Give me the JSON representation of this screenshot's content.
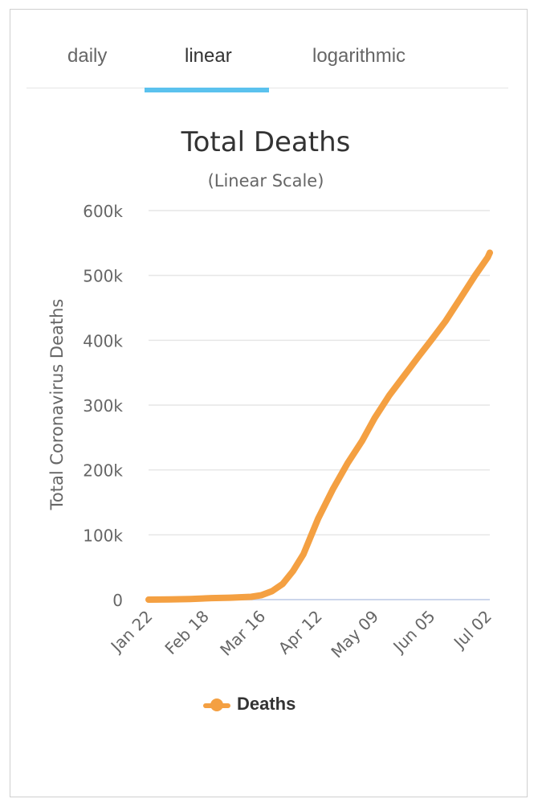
{
  "tabs": [
    {
      "label": "daily",
      "active": false
    },
    {
      "label": "linear",
      "active": true
    },
    {
      "label": "logarithmic",
      "active": false
    }
  ],
  "colors": {
    "series": "#f4a042",
    "tab_underline": "#5bc2ee",
    "grid": "#e6e6e6",
    "axis": "#ccd6eb"
  },
  "chart_data": {
    "type": "line",
    "title": "Total Deaths",
    "subtitle": "(Linear Scale)",
    "ylabel": "Total Coronavirus Deaths",
    "xlabel": "",
    "ylim": [
      0,
      600000
    ],
    "y_ticks": [
      0,
      100000,
      200000,
      300000,
      400000,
      500000,
      600000
    ],
    "y_tick_labels": [
      "0",
      "100k",
      "200k",
      "300k",
      "400k",
      "500k",
      "600k"
    ],
    "x_tick_labels": [
      "Jan 22",
      "Feb 18",
      "Mar 16",
      "Apr 12",
      "May 09",
      "Jun 05",
      "Jul 02"
    ],
    "x_range": [
      "Jan 22",
      "Jul 03"
    ],
    "grid": true,
    "legend_position": "bottom-center",
    "series": [
      {
        "name": "Deaths",
        "x": [
          "Jan 22",
          "Feb 01",
          "Feb 11",
          "Feb 21",
          "Mar 01",
          "Mar 11",
          "Mar 16",
          "Mar 21",
          "Mar 26",
          "Mar 31",
          "Apr 05",
          "Apr 12",
          "Apr 19",
          "Apr 26",
          "May 03",
          "May 09",
          "May 16",
          "May 23",
          "May 30",
          "Jun 05",
          "Jun 12",
          "Jun 19",
          "Jun 26",
          "Jul 02",
          "Jul 03"
        ],
        "values": [
          17,
          300,
          1000,
          2300,
          3000,
          4400,
          7000,
          13000,
          24000,
          44000,
          70000,
          125000,
          170000,
          210000,
          245000,
          280000,
          315000,
          345000,
          375000,
          400000,
          430000,
          465000,
          500000,
          528000,
          535000
        ]
      }
    ]
  }
}
